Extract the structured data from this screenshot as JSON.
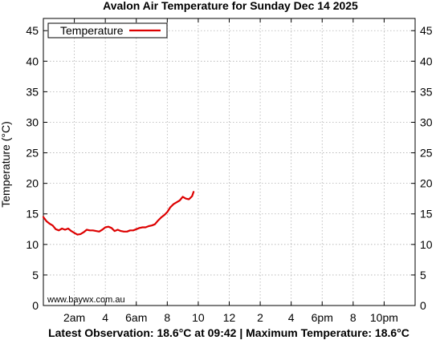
{
  "chart_data": {
    "type": "line",
    "title": "Avalon Air Temperature  for Sunday Dec 14 2025",
    "ylabel": "Temperature (°C)",
    "xlabel": "",
    "xlim": [
      0,
      24
    ],
    "ylim": [
      0,
      47
    ],
    "y_ticks": [
      0,
      5,
      10,
      15,
      20,
      25,
      30,
      35,
      40,
      45
    ],
    "x_ticks": [
      {
        "hour": 2,
        "label": "2am"
      },
      {
        "hour": 4,
        "label": "4"
      },
      {
        "hour": 6,
        "label": "6am"
      },
      {
        "hour": 8,
        "label": "8"
      },
      {
        "hour": 10,
        "label": "10"
      },
      {
        "hour": 12,
        "label": "12"
      },
      {
        "hour": 14,
        "label": "2"
      },
      {
        "hour": 16,
        "label": "4"
      },
      {
        "hour": 18,
        "label": "6pm"
      },
      {
        "hour": 20,
        "label": "8"
      },
      {
        "hour": 22,
        "label": "10pm"
      }
    ],
    "grid": true,
    "legend_position": "top-left",
    "series": [
      {
        "name": "Temperature",
        "color": "#dd0000",
        "x": [
          0.0,
          0.2,
          0.4,
          0.6,
          0.8,
          1.0,
          1.2,
          1.4,
          1.6,
          1.8,
          2.0,
          2.2,
          2.4,
          2.6,
          2.8,
          3.0,
          3.2,
          3.4,
          3.6,
          3.8,
          4.0,
          4.2,
          4.4,
          4.6,
          4.8,
          5.0,
          5.2,
          5.4,
          5.6,
          5.8,
          6.0,
          6.2,
          6.4,
          6.6,
          6.8,
          7.0,
          7.2,
          7.4,
          7.6,
          7.8,
          8.0,
          8.2,
          8.4,
          8.6,
          8.8,
          9.0,
          9.2,
          9.4,
          9.6,
          9.7
        ],
        "y": [
          14.5,
          13.8,
          13.4,
          13.1,
          12.5,
          12.3,
          12.6,
          12.4,
          12.6,
          12.2,
          11.9,
          11.6,
          11.7,
          12.0,
          12.4,
          12.3,
          12.3,
          12.2,
          12.1,
          12.4,
          12.8,
          12.9,
          12.7,
          12.2,
          12.4,
          12.2,
          12.1,
          12.1,
          12.3,
          12.3,
          12.5,
          12.7,
          12.8,
          12.8,
          13.0,
          13.1,
          13.3,
          13.9,
          14.4,
          14.8,
          15.3,
          16.1,
          16.6,
          16.9,
          17.2,
          17.8,
          17.5,
          17.4,
          17.9,
          18.6
        ]
      }
    ]
  },
  "legend": {
    "label": "Temperature"
  },
  "watermark": "www.baywx.com.au",
  "footer": "Latest Observation: 18.6°C at 09:42 | Maximum Temperature: 18.6°C"
}
